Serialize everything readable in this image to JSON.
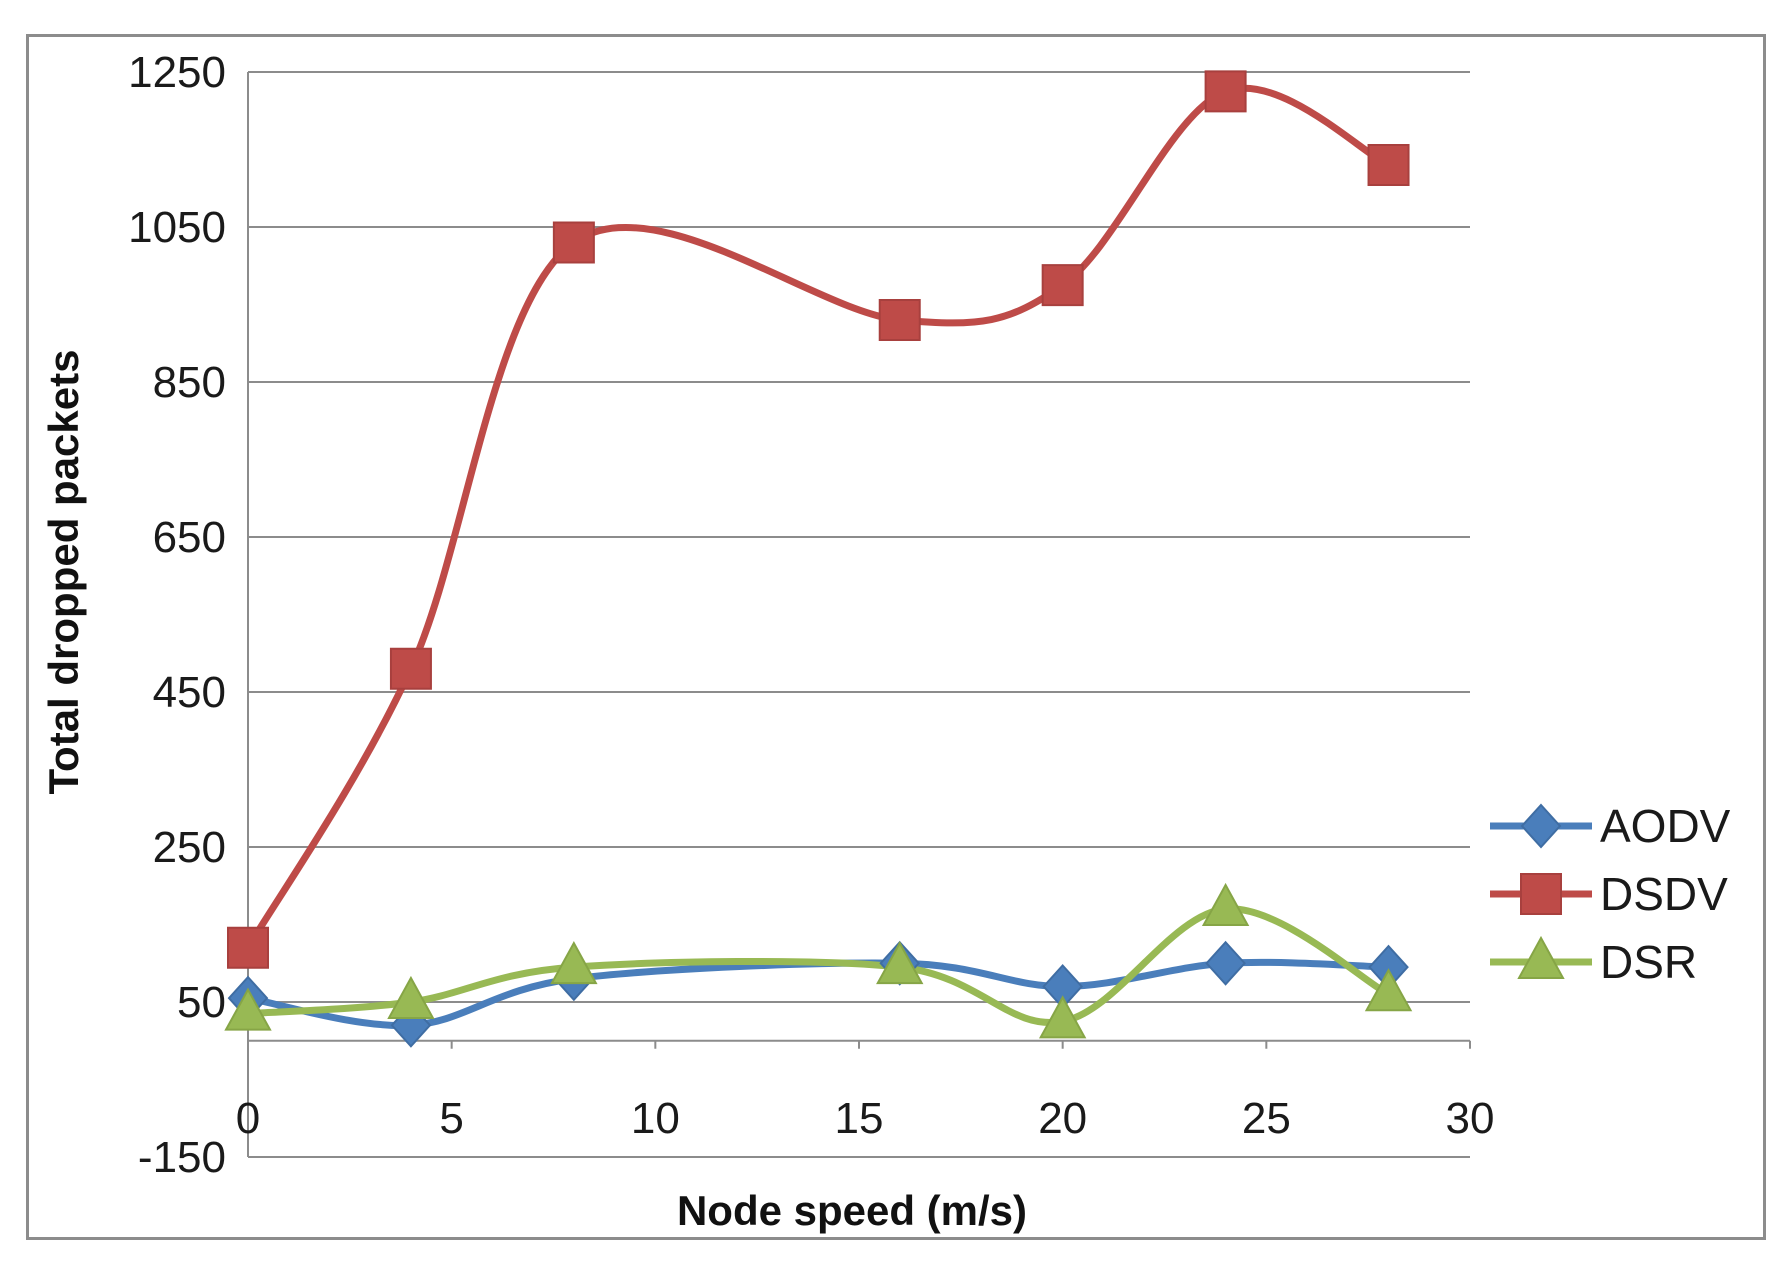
{
  "chart_data": {
    "type": "line",
    "title": "",
    "xlabel": "Node speed (m/s)",
    "ylabel": "Total dropped packets",
    "xlim": [
      0,
      30
    ],
    "ylim": [
      -150,
      1250
    ],
    "x_ticks": [
      0,
      5,
      10,
      15,
      20,
      25,
      30
    ],
    "y_ticks": [
      -150,
      50,
      250,
      450,
      650,
      850,
      1050,
      1250
    ],
    "grid": "horizontal",
    "legend_position": "right",
    "smooth": true,
    "series": [
      {
        "name": "AODV",
        "color": "#4a7ebb",
        "marker": "diamond",
        "x": [
          0,
          4,
          8,
          16,
          20,
          24,
          28
        ],
        "values": [
          55,
          20,
          80,
          100,
          70,
          100,
          95
        ]
      },
      {
        "name": "DSDV",
        "color": "#be4b48",
        "marker": "square",
        "x": [
          0,
          4,
          8,
          16,
          20,
          24,
          28
        ],
        "values": [
          120,
          480,
          1030,
          930,
          975,
          1225,
          1130
        ]
      },
      {
        "name": "DSR",
        "color": "#98b954",
        "marker": "triangle",
        "x": [
          0,
          4,
          8,
          16,
          20,
          24,
          28
        ],
        "values": [
          35,
          50,
          95,
          95,
          25,
          170,
          60
        ]
      }
    ]
  }
}
